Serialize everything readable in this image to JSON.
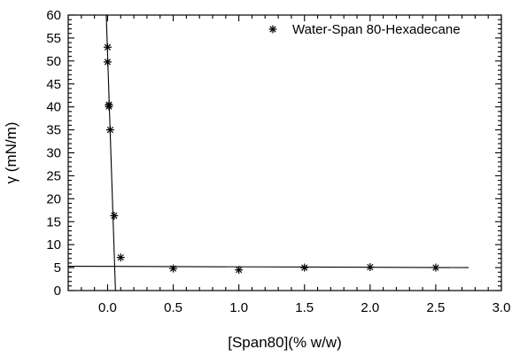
{
  "chart_data": {
    "type": "scatter",
    "xlabel": "[Span80](% w/w)",
    "ylabel": "γ (mN/m)",
    "xlim": [
      -0.3,
      3.0
    ],
    "ylim": [
      0,
      60
    ],
    "x_ticks": [
      0.0,
      0.5,
      1.0,
      1.5,
      2.0,
      2.5,
      3.0
    ],
    "x_tick_labels": [
      "0.0",
      "0.5",
      "1.0",
      "1.5",
      "2.0",
      "2.5",
      "3.0"
    ],
    "y_ticks": [
      0,
      5,
      10,
      15,
      20,
      25,
      30,
      35,
      40,
      45,
      50,
      55,
      60
    ],
    "y_tick_labels": [
      "0",
      "5",
      "10",
      "15",
      "20",
      "25",
      "30",
      "35",
      "40",
      "45",
      "50",
      "55",
      "60"
    ],
    "grid": false,
    "legend_position": "top-right",
    "marker": "asterisk",
    "series": [
      {
        "name": "Water-Span 80-Hexadecane",
        "x": [
          0.0,
          0.0,
          0.01,
          0.01,
          0.02,
          0.05,
          0.1,
          0.5,
          1.0,
          1.5,
          2.0,
          2.5
        ],
        "y": [
          53.0,
          49.8,
          40.5,
          40.1,
          35.0,
          16.3,
          7.2,
          4.8,
          4.5,
          5.0,
          5.1,
          5.0
        ]
      }
    ],
    "fit_lines": [
      {
        "x": [
          -0.01,
          0.06
        ],
        "y": [
          60.0,
          0.0
        ]
      },
      {
        "x": [
          -0.3,
          2.75
        ],
        "y": [
          5.3,
          5.0
        ]
      }
    ]
  }
}
